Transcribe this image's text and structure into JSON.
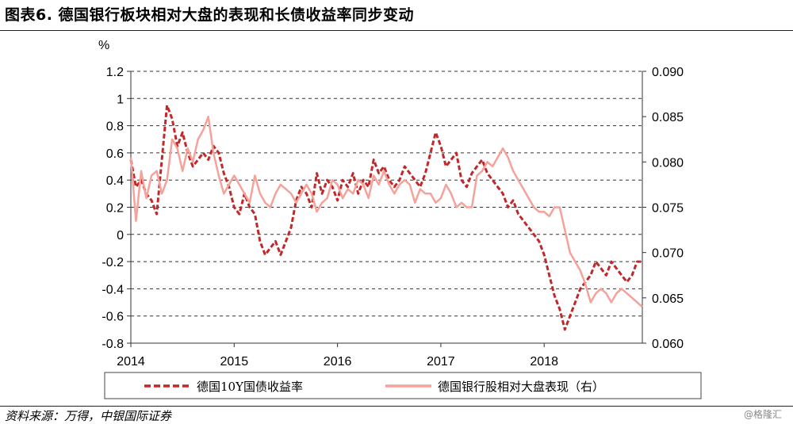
{
  "header": {
    "title": "图表6. 德国银行板块相对大盘的表现和长债收益率同步变动",
    "source": "资料来源：万得，中银国际证券",
    "watermark": "@格隆汇"
  },
  "chart_data": {
    "type": "line",
    "y_unit_label": "%",
    "x_ticks": [
      "2014",
      "2015",
      "2016",
      "2017",
      "2018"
    ],
    "xlim": [
      2014.0,
      2018.95
    ],
    "y_left": {
      "ticks": [
        "1.2",
        "1",
        "0.8",
        "0.6",
        "0.4",
        "0.2",
        "0",
        "-0.2",
        "-0.4",
        "-0.6",
        "-0.8"
      ],
      "range": [
        -0.8,
        1.2
      ]
    },
    "y_right": {
      "ticks": [
        "0.090",
        "0.085",
        "0.080",
        "0.075",
        "0.070",
        "0.065",
        "0.060"
      ],
      "range": [
        0.06,
        0.09
      ]
    },
    "grid": true,
    "legend_position": "bottom",
    "series": [
      {
        "name": "德国10Y国债收益率",
        "axis": "left",
        "color": "#c0282a",
        "style": "dashed",
        "x": [
          2014.0,
          2014.05,
          2014.1,
          2014.15,
          2014.2,
          2014.25,
          2014.3,
          2014.35,
          2014.4,
          2014.45,
          2014.5,
          2014.55,
          2014.6,
          2014.65,
          2014.7,
          2014.75,
          2014.8,
          2014.85,
          2014.9,
          2014.95,
          2015.0,
          2015.05,
          2015.1,
          2015.15,
          2015.2,
          2015.25,
          2015.3,
          2015.35,
          2015.4,
          2015.45,
          2015.5,
          2015.55,
          2015.6,
          2015.65,
          2015.7,
          2015.75,
          2015.8,
          2015.85,
          2015.9,
          2015.95,
          2016.0,
          2016.05,
          2016.1,
          2016.15,
          2016.2,
          2016.25,
          2016.3,
          2016.35,
          2016.4,
          2016.45,
          2016.5,
          2016.55,
          2016.6,
          2016.65,
          2016.7,
          2016.75,
          2016.8,
          2016.85,
          2016.9,
          2016.95,
          2017.0,
          2017.05,
          2017.1,
          2017.15,
          2017.2,
          2017.25,
          2017.3,
          2017.35,
          2017.4,
          2017.45,
          2017.5,
          2017.55,
          2017.6,
          2017.65,
          2017.7,
          2017.75,
          2017.8,
          2017.85,
          2017.9,
          2017.95,
          2018.0,
          2018.05,
          2018.1,
          2018.15,
          2018.2,
          2018.25,
          2018.3,
          2018.35,
          2018.4,
          2018.45,
          2018.5,
          2018.55,
          2018.6,
          2018.65,
          2018.7,
          2018.75,
          2018.8,
          2018.85,
          2018.9,
          2018.95
        ],
        "values": [
          0.55,
          0.35,
          0.4,
          0.3,
          0.25,
          0.15,
          0.55,
          0.95,
          0.85,
          0.65,
          0.75,
          0.6,
          0.5,
          0.55,
          0.6,
          0.55,
          0.65,
          0.6,
          0.45,
          0.35,
          0.2,
          0.15,
          0.3,
          0.2,
          0.15,
          -0.05,
          -0.15,
          -0.1,
          -0.05,
          -0.15,
          -0.05,
          0.05,
          0.25,
          0.35,
          0.3,
          0.2,
          0.45,
          0.3,
          0.4,
          0.35,
          0.25,
          0.4,
          0.35,
          0.45,
          0.3,
          0.4,
          0.35,
          0.55,
          0.45,
          0.5,
          0.4,
          0.35,
          0.4,
          0.5,
          0.45,
          0.4,
          0.35,
          0.45,
          0.6,
          0.75,
          0.65,
          0.5,
          0.55,
          0.6,
          0.4,
          0.35,
          0.45,
          0.5,
          0.55,
          0.45,
          0.4,
          0.35,
          0.3,
          0.2,
          0.25,
          0.15,
          0.1,
          0.05,
          0.0,
          -0.05,
          -0.15,
          -0.3,
          -0.45,
          -0.55,
          -0.7,
          -0.6,
          -0.5,
          -0.4,
          -0.35,
          -0.3,
          -0.2,
          -0.25,
          -0.3,
          -0.2,
          -0.25,
          -0.3,
          -0.35,
          -0.3,
          -0.2,
          -0.2
        ]
      },
      {
        "name": "德国银行股相对大盘表现（右）",
        "axis": "right",
        "color": "#f4a29a",
        "style": "solid",
        "x": [
          2014.0,
          2014.05,
          2014.1,
          2014.15,
          2014.2,
          2014.25,
          2014.3,
          2014.35,
          2014.4,
          2014.45,
          2014.5,
          2014.55,
          2014.6,
          2014.65,
          2014.7,
          2014.75,
          2014.8,
          2014.85,
          2014.9,
          2014.95,
          2015.0,
          2015.05,
          2015.1,
          2015.15,
          2015.2,
          2015.25,
          2015.3,
          2015.35,
          2015.4,
          2015.45,
          2015.5,
          2015.55,
          2015.6,
          2015.65,
          2015.7,
          2015.75,
          2015.8,
          2015.85,
          2015.9,
          2015.95,
          2016.0,
          2016.05,
          2016.1,
          2016.15,
          2016.2,
          2016.25,
          2016.3,
          2016.35,
          2016.4,
          2016.45,
          2016.5,
          2016.55,
          2016.6,
          2016.65,
          2016.7,
          2016.75,
          2016.8,
          2016.85,
          2016.9,
          2016.95,
          2017.0,
          2017.05,
          2017.1,
          2017.15,
          2017.2,
          2017.25,
          2017.3,
          2017.35,
          2017.4,
          2017.45,
          2017.5,
          2017.55,
          2017.6,
          2017.65,
          2017.7,
          2017.75,
          2017.8,
          2017.85,
          2017.9,
          2017.95,
          2018.0,
          2018.05,
          2018.1,
          2018.15,
          2018.2,
          2018.25,
          2018.3,
          2018.35,
          2018.4,
          2018.45,
          2018.5,
          2018.55,
          2018.6,
          2018.65,
          2018.7,
          2018.75,
          2018.8,
          2018.85,
          2018.9,
          2018.95
        ],
        "values": [
          0.0805,
          0.0735,
          0.079,
          0.076,
          0.0785,
          0.079,
          0.0765,
          0.078,
          0.0825,
          0.0815,
          0.079,
          0.0815,
          0.08,
          0.0825,
          0.0835,
          0.085,
          0.081,
          0.0785,
          0.0765,
          0.0775,
          0.0785,
          0.0775,
          0.0765,
          0.0755,
          0.0785,
          0.0765,
          0.0755,
          0.075,
          0.0765,
          0.0775,
          0.077,
          0.0765,
          0.0755,
          0.0765,
          0.0775,
          0.0765,
          0.0745,
          0.0755,
          0.076,
          0.078,
          0.0775,
          0.076,
          0.077,
          0.0765,
          0.078,
          0.0775,
          0.076,
          0.0785,
          0.0775,
          0.079,
          0.0775,
          0.0765,
          0.0775,
          0.078,
          0.0775,
          0.0755,
          0.077,
          0.0765,
          0.0765,
          0.0755,
          0.076,
          0.0775,
          0.0765,
          0.075,
          0.0755,
          0.075,
          0.075,
          0.0785,
          0.079,
          0.08,
          0.0795,
          0.0805,
          0.0815,
          0.0805,
          0.079,
          0.078,
          0.077,
          0.076,
          0.075,
          0.0745,
          0.0745,
          0.074,
          0.075,
          0.075,
          0.0725,
          0.07,
          0.069,
          0.068,
          0.0665,
          0.0645,
          0.0655,
          0.066,
          0.0655,
          0.0645,
          0.0655,
          0.066,
          0.0655,
          0.065,
          0.0645,
          0.064
        ]
      }
    ]
  }
}
